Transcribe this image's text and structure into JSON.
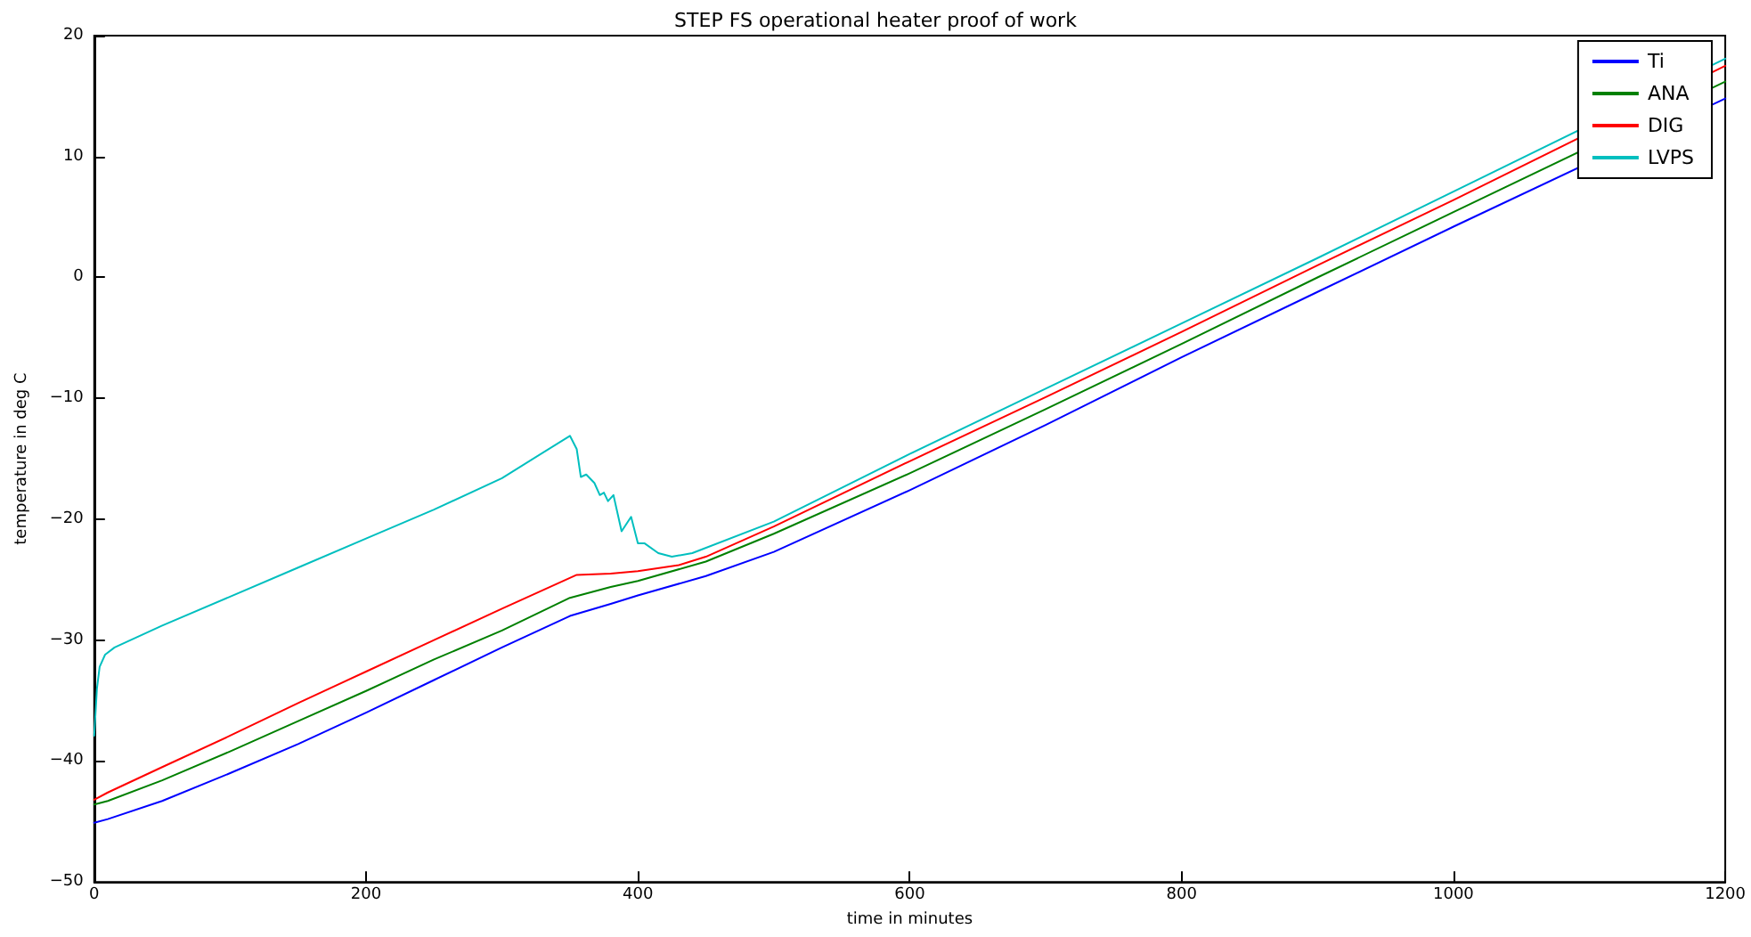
{
  "chart_data": {
    "type": "line",
    "title": "STEP FS operational heater proof of work",
    "xlabel": "time in minutes",
    "ylabel": "temperature in deg C",
    "xlim": [
      0,
      1200
    ],
    "xticks": [
      0,
      200,
      400,
      600,
      800,
      1000,
      1200
    ],
    "ylim": [
      -50,
      20
    ],
    "yticks": [
      -50,
      -40,
      -30,
      -20,
      -10,
      0,
      10,
      20
    ],
    "grid": false,
    "legend": "top right",
    "marker": "none",
    "line_style": "solid",
    "series": [
      {
        "name": "Ti",
        "color": "#0000ff",
        "x": [
          0,
          10,
          50,
          100,
          150,
          200,
          250,
          300,
          350,
          380,
          400,
          450,
          500,
          600,
          700,
          800,
          900,
          1000,
          1200
        ],
        "values": [
          -45.1,
          -44.8,
          -43.3,
          -41,
          -38.6,
          -36,
          -33.3,
          -30.6,
          -28,
          -27,
          -26.3,
          -24.7,
          -22.7,
          -17.6,
          -12.2,
          -6.6,
          -1.2,
          4.2,
          14.8
        ]
      },
      {
        "name": "ANA",
        "color": "#008000",
        "x": [
          0,
          10,
          50,
          100,
          150,
          200,
          250,
          300,
          350,
          380,
          400,
          450,
          500,
          600,
          700,
          800,
          900,
          1000,
          1200
        ],
        "values": [
          -43.6,
          -43.3,
          -41.6,
          -39.2,
          -36.7,
          -34.2,
          -31.6,
          -29.2,
          -26.5,
          -25.6,
          -25.1,
          -23.5,
          -21.2,
          -16.2,
          -10.9,
          -5.5,
          0,
          5.4,
          16.2
        ]
      },
      {
        "name": "DIG",
        "color": "#ff0000",
        "x": [
          0,
          10,
          50,
          100,
          150,
          200,
          250,
          300,
          355,
          380,
          400,
          430,
          450,
          500,
          600,
          700,
          800,
          900,
          1000,
          1200
        ],
        "values": [
          -43.2,
          -42.6,
          -40.5,
          -37.9,
          -35.2,
          -32.6,
          -30,
          -27.4,
          -24.6,
          -24.5,
          -24.3,
          -23.8,
          -23.1,
          -20.6,
          -15.2,
          -9.9,
          -4.5,
          1,
          6.4,
          17.5
        ]
      },
      {
        "name": "LVPS",
        "color": "#00bfbf",
        "x": [
          0,
          2,
          4,
          8,
          15,
          50,
          100,
          150,
          200,
          250,
          300,
          350,
          355,
          358,
          362,
          368,
          372,
          375,
          378,
          382,
          388,
          395,
          400,
          405,
          415,
          425,
          440,
          500,
          600,
          700,
          800,
          900,
          1000,
          1200
        ],
        "values": [
          -37.9,
          -34,
          -32.2,
          -31.2,
          -30.6,
          -28.8,
          -26.4,
          -24,
          -21.6,
          -19.2,
          -16.6,
          -13.1,
          -14.2,
          -16.5,
          -16.3,
          -17,
          -18,
          -17.8,
          -18.5,
          -18,
          -21,
          -19.8,
          -22,
          -22,
          -22.8,
          -23.1,
          -22.8,
          -20.2,
          -14.6,
          -9.2,
          -3.8,
          1.6,
          7.1,
          18.1
        ]
      }
    ]
  }
}
